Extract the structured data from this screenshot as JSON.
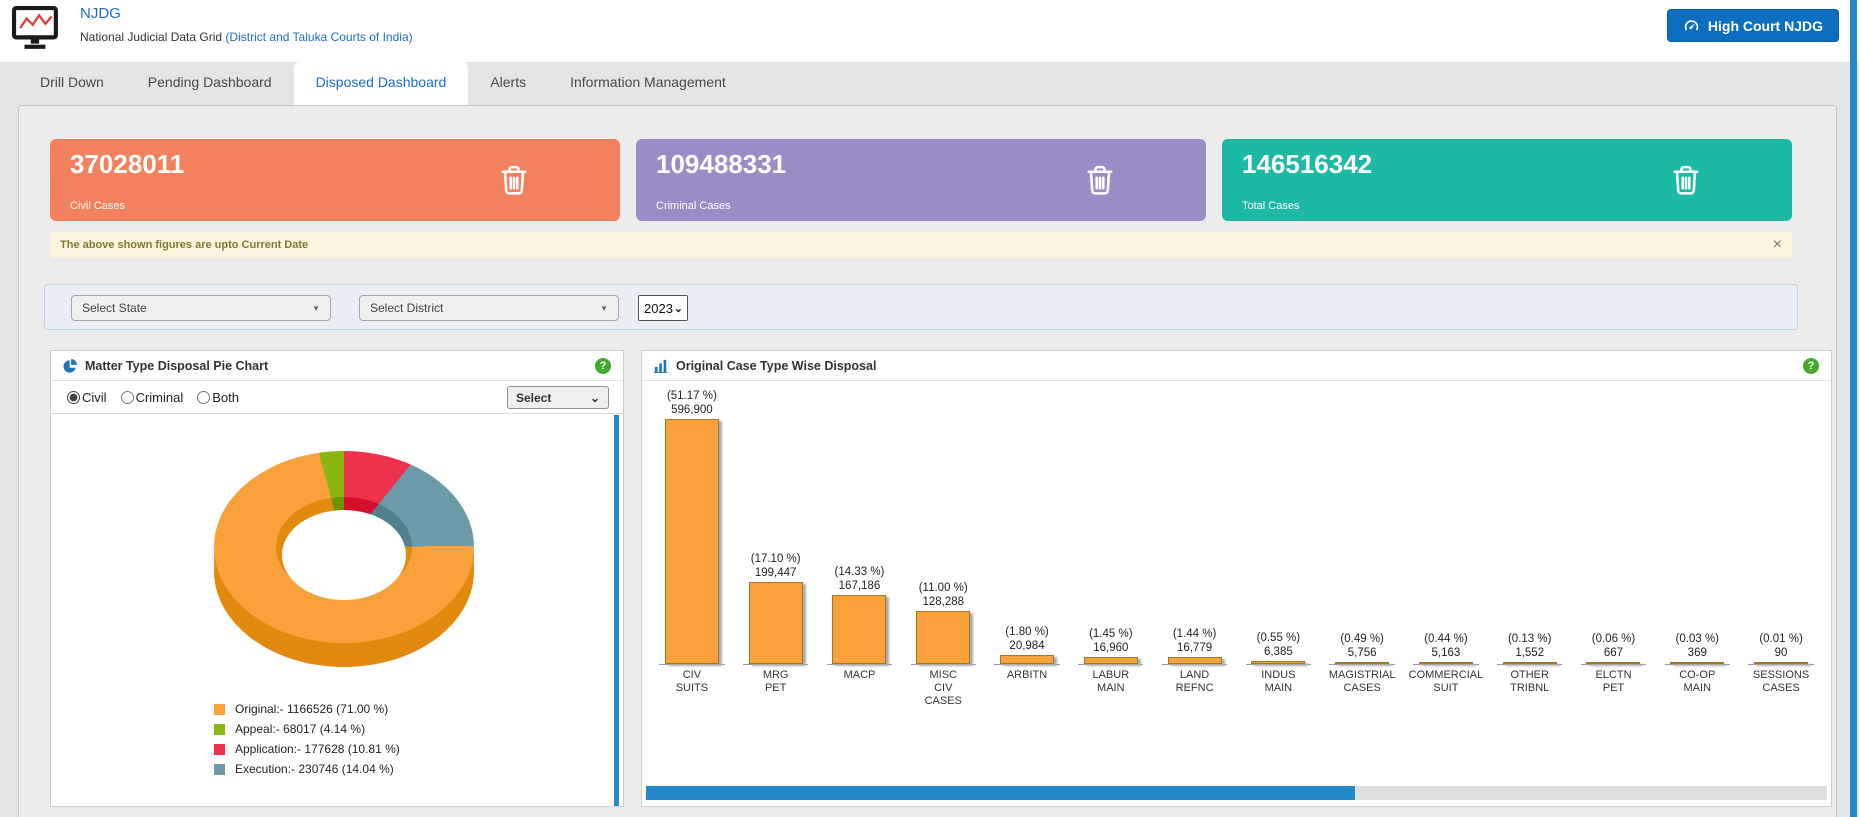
{
  "header": {
    "brand": "NJDG",
    "subtitle": "National Judicial Data Grid",
    "subtitle_link": "(District and Taluka Courts of India)",
    "high_court_button": "High Court NJDG"
  },
  "tabs": [
    {
      "label": "Drill Down",
      "active": false
    },
    {
      "label": "Pending Dashboard",
      "active": false
    },
    {
      "label": "Disposed Dashboard",
      "active": true
    },
    {
      "label": "Alerts",
      "active": false
    },
    {
      "label": "Information Management",
      "active": false
    }
  ],
  "stat_cards": [
    {
      "value": "37028011",
      "label": "Civil Cases",
      "color": "#f4815e"
    },
    {
      "value": "109488331",
      "label": "Criminal Cases",
      "color": "#9b8cc8"
    },
    {
      "value": "146516342",
      "label": "Total Cases",
      "color": "#1cb9a4"
    }
  ],
  "notice": {
    "text": "The above shown figures are upto Current Date"
  },
  "filters": {
    "state_placeholder": "Select State",
    "district_placeholder": "Select District",
    "year_value": "2023"
  },
  "pie_panel": {
    "title": "Matter Type Disposal Pie Chart",
    "radios": [
      {
        "label": "Civil",
        "checked": true
      },
      {
        "label": "Criminal",
        "checked": false
      },
      {
        "label": "Both",
        "checked": false
      }
    ],
    "select_value": "Select"
  },
  "bar_panel": {
    "title": "Original Case Type Wise Disposal"
  },
  "icons": {
    "help_glyph": "?",
    "close_glyph": "×",
    "dd_caret_glyph": "▼",
    "select_caret_glyph": "⌄"
  },
  "colors": {
    "accent_blue": "#1b6ec2",
    "scrollbar_blue": "#2289cb",
    "help_green": "#43a82c",
    "bar_orange": "#f9a23c"
  },
  "chart_data": [
    {
      "id": "matter-type-disposal-pie",
      "type": "pie",
      "title": "Matter Type Disposal Pie Chart",
      "labels": [
        "Original",
        "Appeal",
        "Application",
        "Execution"
      ],
      "values": [
        1166526,
        68017,
        177628,
        230746
      ],
      "percents": [
        71.0,
        4.14,
        10.81,
        14.04
      ],
      "colors": [
        "#f9a13b",
        "#8bb611",
        "#f0314c",
        "#6d9aa8"
      ],
      "dark_colors": [
        "#e18a0e",
        "#6f9105",
        "#d40f2c",
        "#51808f"
      ],
      "segment_order": [
        2,
        3,
        0,
        1
      ],
      "legend": [
        "Original:- 1166526 (71.00 %)",
        "Appeal:- 68017 (4.14 %)",
        "Application:- 177628 (10.81 %)",
        "Execution:- 230746 (14.04 %)"
      ],
      "legend_position": "bottom",
      "style": "3d-donut"
    },
    {
      "id": "original-case-type-wise-disposal-bar",
      "type": "bar",
      "title": "Original Case Type Wise Disposal",
      "categories": [
        "CIV\nSUITS",
        "MRG\nPET",
        "MACP",
        "MISC\nCIV\nCASES",
        "ARBITN",
        "LABUR\nMAIN",
        "LAND\nREFNC",
        "INDUS\nMAIN",
        "MAGISTRIAL\nCASES",
        "COMMERCIAL\nSUIT",
        "OTHER\nTRIBNL",
        "ELCTN\nPET",
        "CO-OP\nMAIN",
        "SESSIONS\nCASES"
      ],
      "values": [
        596900,
        199447,
        167186,
        128288,
        20984,
        16960,
        16779,
        6385,
        5756,
        5163,
        1552,
        667,
        369,
        90
      ],
      "value_labels": [
        "596,900",
        "199,447",
        "167,186",
        "128,288",
        "20,984",
        "16,960",
        "16,779",
        "6,385",
        "5,756",
        "5,163",
        "1,552",
        "667",
        "369",
        "90"
      ],
      "percent_labels": [
        "(51.17 %)",
        "(17.10 %)",
        "(14.33 %)",
        "(11.00 %)",
        "(1.80 %)",
        "(1.45 %)",
        "(1.44 %)",
        "(0.55 %)",
        "(0.49 %)",
        "(0.44 %)",
        "(0.13 %)",
        "(0.06 %)",
        "(0.03 %)",
        "(0.01 %)"
      ],
      "bar_color": "#f9a23c",
      "grid": false,
      "ylim": [
        0,
        596900
      ]
    }
  ]
}
